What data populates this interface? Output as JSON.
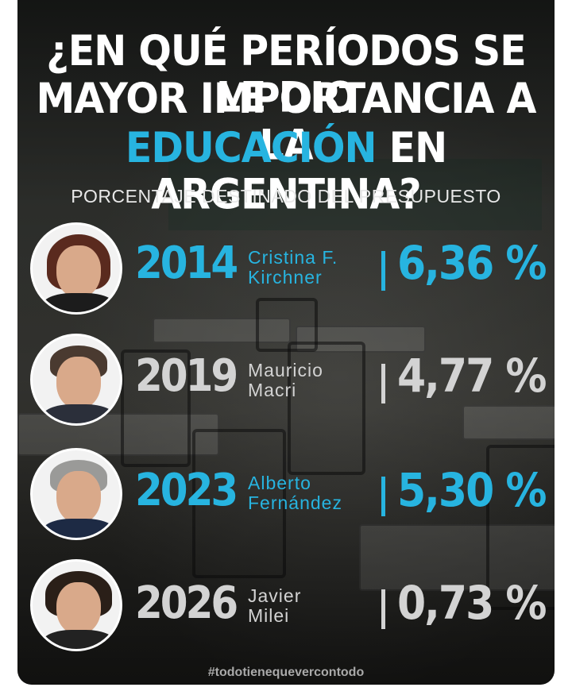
{
  "title": {
    "line1": "¿EN QUÉ PERÍODOS SE LE DIO",
    "line2": "MAYOR IMPORTANCIA A LA",
    "line3_accent": "EDUCACIÓN",
    "line3_rest": " EN ARGENTINA?"
  },
  "subtitle": "PORCENTAJE DESTINADO DEL PRESUPUESTO",
  "colors": {
    "accent": "#27b4e0",
    "muted": "#d3d3d3",
    "text": "#ffffff"
  },
  "rows": [
    {
      "year": "2014",
      "name_line1": "Cristina F.",
      "name_line2": "Kirchner",
      "percent": "6,36 %",
      "highlight": true
    },
    {
      "year": "2019",
      "name_line1": "Mauricio",
      "name_line2": "Macri",
      "percent": "4,77 %",
      "highlight": false
    },
    {
      "year": "2023",
      "name_line1": "Alberto",
      "name_line2": "Fernández",
      "percent": "5,30 %",
      "highlight": true
    },
    {
      "year": "2026",
      "name_line1": "Javier",
      "name_line2": "Milei",
      "percent": "0,73 %",
      "highlight": false
    }
  ],
  "hashtag": "#todotienequevercontodo"
}
